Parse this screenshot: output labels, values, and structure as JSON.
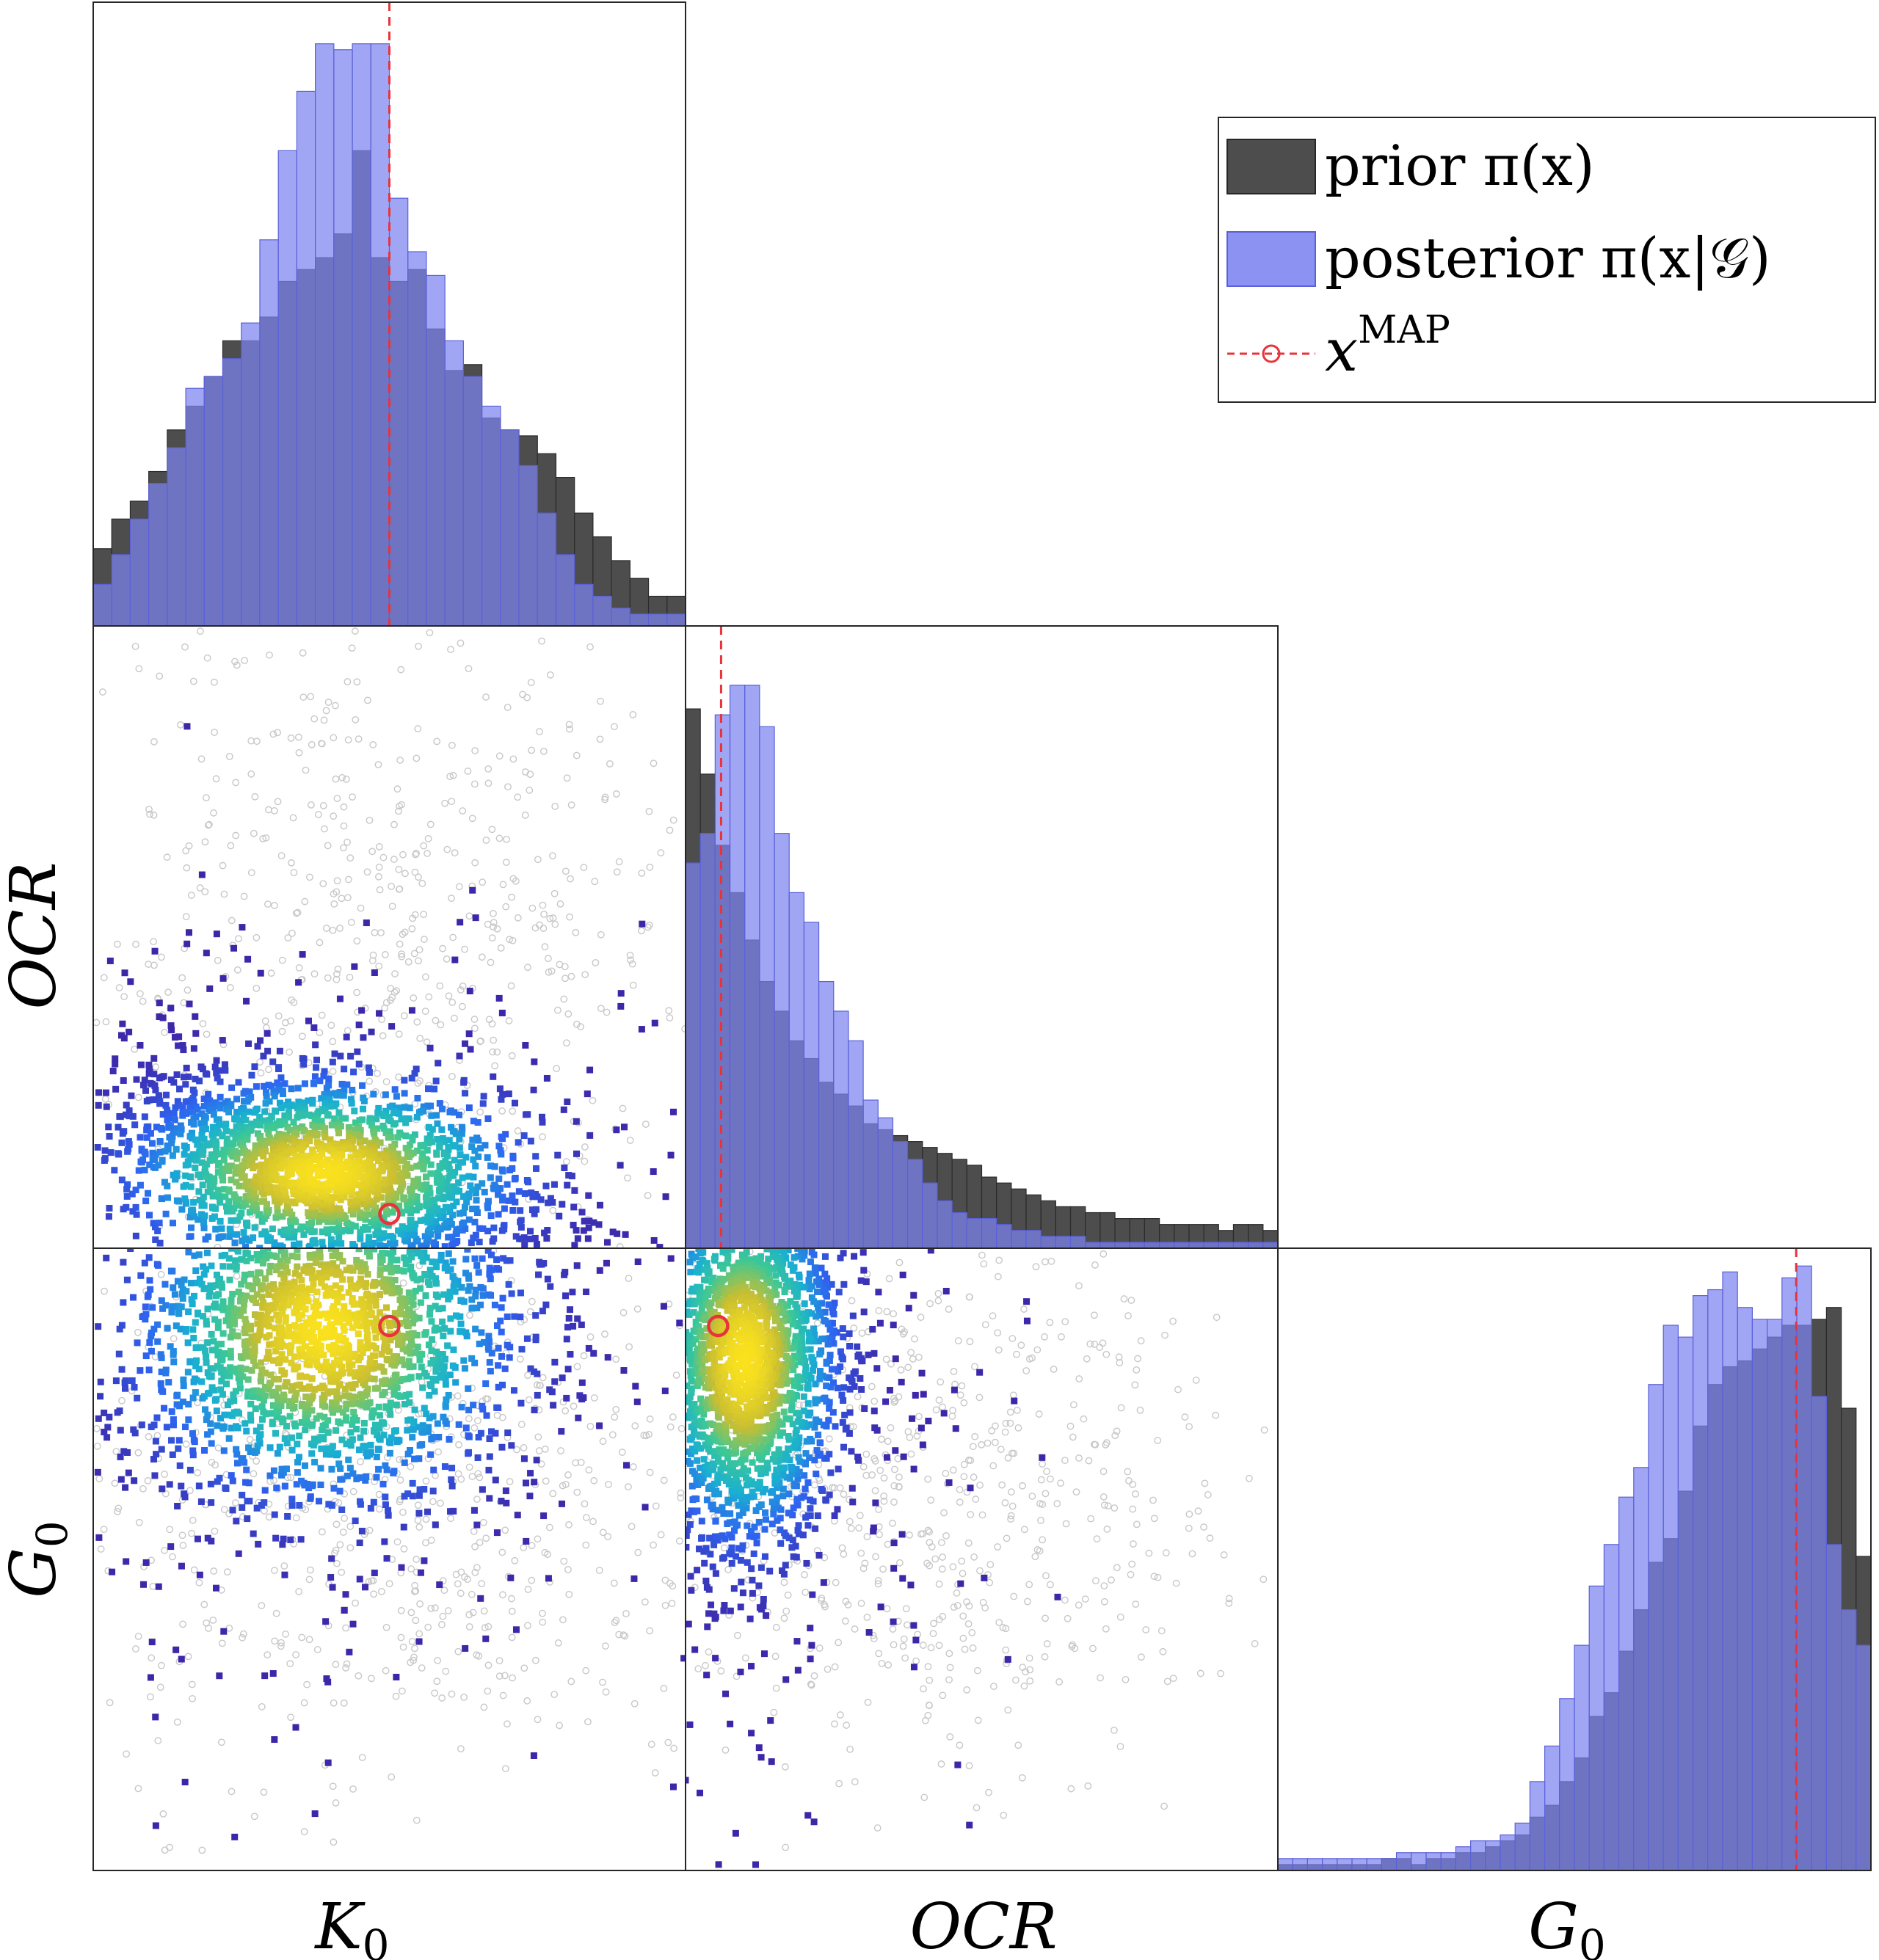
{
  "legend": {
    "entries": [
      {
        "label": "prior π(x)",
        "color": "#4d4d4d"
      },
      {
        "label": "posterior π(x|𝒢)",
        "color": "#8c92f2"
      },
      {
        "label": "x",
        "sup": "MAP",
        "color": "#e8333a"
      }
    ]
  },
  "axes": {
    "x_labels": [
      "K",
      "OCR",
      "G"
    ],
    "x_subscripts": [
      "0",
      "",
      "0"
    ],
    "y_labels": [
      "OCR",
      "G"
    ],
    "y_subscripts": [
      "",
      "0"
    ]
  },
  "colors": {
    "prior": "#4d4d4d",
    "posterior": "#7d84f0",
    "overlap": "#5558c8",
    "map": "#e8333a",
    "prior_scatter": "#c8c8c8"
  },
  "chart_data": [
    {
      "type": "bar",
      "name": "K0 marginal",
      "xlim": [
        0,
        1
      ],
      "ylim": [
        0,
        1.05
      ],
      "bins": 32,
      "prior": [
        0.13,
        0.18,
        0.21,
        0.26,
        0.33,
        0.37,
        0.42,
        0.48,
        0.48,
        0.52,
        0.58,
        0.6,
        0.62,
        0.66,
        0.8,
        0.62,
        0.58,
        0.6,
        0.5,
        0.43,
        0.44,
        0.35,
        0.33,
        0.32,
        0.29,
        0.25,
        0.19,
        0.15,
        0.11,
        0.08,
        0.05,
        0.05
      ],
      "posterior": [
        0.07,
        0.12,
        0.18,
        0.24,
        0.3,
        0.4,
        0.42,
        0.45,
        0.51,
        0.65,
        0.8,
        0.9,
        0.98,
        0.97,
        0.98,
        0.98,
        0.72,
        0.63,
        0.59,
        0.48,
        0.42,
        0.37,
        0.33,
        0.27,
        0.19,
        0.12,
        0.07,
        0.05,
        0.03,
        0.02,
        0.02,
        0.02
      ],
      "map_x": 0.5
    },
    {
      "type": "bar",
      "name": "OCR marginal",
      "xlim": [
        0,
        1
      ],
      "ylim": [
        0,
        1.05
      ],
      "bins": 40,
      "prior": [
        0.91,
        0.8,
        0.68,
        0.6,
        0.52,
        0.45,
        0.4,
        0.35,
        0.32,
        0.28,
        0.26,
        0.24,
        0.21,
        0.2,
        0.19,
        0.18,
        0.17,
        0.16,
        0.15,
        0.14,
        0.12,
        0.11,
        0.1,
        0.09,
        0.08,
        0.07,
        0.07,
        0.06,
        0.06,
        0.05,
        0.05,
        0.05,
        0.04,
        0.04,
        0.04,
        0.04,
        0.03,
        0.04,
        0.04,
        0.03
      ],
      "posterior": [
        0.65,
        0.7,
        0.9,
        0.95,
        0.95,
        0.88,
        0.7,
        0.6,
        0.55,
        0.45,
        0.4,
        0.35,
        0.25,
        0.22,
        0.18,
        0.15,
        0.11,
        0.08,
        0.06,
        0.05,
        0.05,
        0.04,
        0.03,
        0.03,
        0.02,
        0.02,
        0.02,
        0.01,
        0.01,
        0.01,
        0.01,
        0.01,
        0.01,
        0.01,
        0.01,
        0.01,
        0.01,
        0.01,
        0.01,
        0.01
      ],
      "map_x": 0.06
    },
    {
      "type": "bar",
      "name": "G0 marginal",
      "xlim": [
        0,
        1
      ],
      "ylim": [
        0,
        1.05
      ],
      "bins": 40,
      "prior": [
        0.01,
        0.01,
        0.01,
        0.01,
        0.01,
        0.01,
        0.01,
        0.02,
        0.02,
        0.01,
        0.02,
        0.02,
        0.03,
        0.03,
        0.04,
        0.05,
        0.06,
        0.09,
        0.11,
        0.15,
        0.19,
        0.26,
        0.3,
        0.37,
        0.44,
        0.52,
        0.56,
        0.64,
        0.75,
        0.82,
        0.85,
        0.86,
        0.88,
        0.9,
        0.92,
        0.92,
        0.93,
        0.95,
        0.78,
        0.53
      ],
      "posterior": [
        0.02,
        0.02,
        0.02,
        0.02,
        0.02,
        0.02,
        0.02,
        0.02,
        0.03,
        0.03,
        0.03,
        0.03,
        0.04,
        0.05,
        0.05,
        0.06,
        0.08,
        0.15,
        0.21,
        0.29,
        0.38,
        0.48,
        0.55,
        0.63,
        0.68,
        0.82,
        0.92,
        0.9,
        0.97,
        0.98,
        1.01,
        0.95,
        0.93,
        0.93,
        1.0,
        1.02,
        0.8,
        0.55,
        0.44,
        0.38
      ],
      "map_x": 0.874
    },
    {
      "type": "scatter",
      "name": "OCR vs K0",
      "x_param": "K0",
      "y_param": "OCR",
      "xlim": [
        0,
        1
      ],
      "ylim": [
        0,
        1
      ],
      "prior_cloud": {
        "center": [
          0.5,
          0.5
        ],
        "spread": [
          0.28,
          0.28
        ]
      },
      "posterior_cloud": {
        "center": [
          0.39,
          0.12
        ],
        "spread": [
          0.17,
          0.08
        ],
        "rho": -0.35
      },
      "map": [
        0.5,
        0.055
      ]
    },
    {
      "type": "scatter",
      "name": "G0 vs K0",
      "x_param": "K0",
      "y_param": "G0",
      "xlim": [
        0,
        1
      ],
      "ylim": [
        0,
        1
      ],
      "prior_cloud": {
        "center": [
          0.5,
          0.6
        ],
        "spread": [
          0.28,
          0.24
        ]
      },
      "posterior_cloud": {
        "center": [
          0.39,
          0.87
        ],
        "spread": [
          0.16,
          0.14
        ],
        "rho": 0.05
      },
      "map": [
        0.5,
        0.875
      ]
    },
    {
      "type": "scatter",
      "name": "G0 vs OCR",
      "x_param": "OCR",
      "y_param": "G0",
      "xlim": [
        0,
        1
      ],
      "ylim": [
        0,
        1
      ],
      "prior_cloud": {
        "center": [
          0.4,
          0.6
        ],
        "spread": [
          0.26,
          0.22
        ]
      },
      "posterior_cloud": {
        "center": [
          0.1,
          0.82
        ],
        "spread": [
          0.08,
          0.15
        ],
        "rho": 0.1
      },
      "map": [
        0.055,
        0.875
      ]
    }
  ]
}
